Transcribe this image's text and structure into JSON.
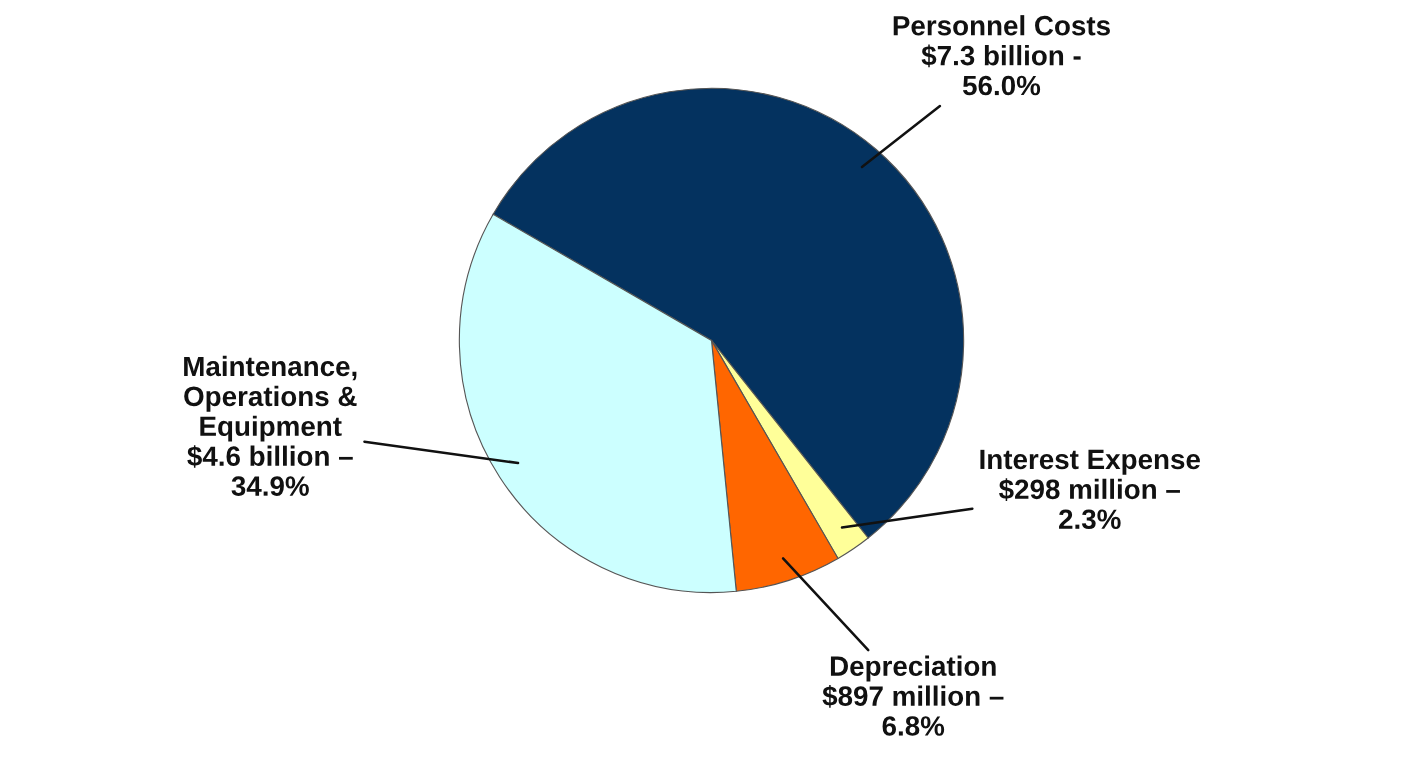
{
  "chart_data": {
    "type": "pie",
    "categories": [
      "Personnel Costs",
      "Interest Expense",
      "Depreciation",
      "Maintenance,\nOperations &\nEquipment"
    ],
    "values": [
      56.0,
      2.3,
      6.8,
      34.9
    ],
    "colors": [
      "#04325f",
      "#ffff99",
      "#ff6600",
      "#ccffff"
    ],
    "value_labels": [
      "$7.3 billion -\n56.0%",
      "$298 million –\n2.3%",
      "$897 million –\n6.8%",
      "$4.6 billion –\n34.9%"
    ],
    "legend": false
  }
}
